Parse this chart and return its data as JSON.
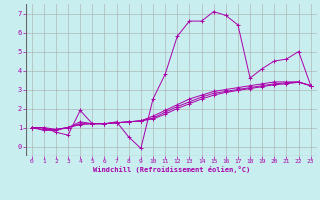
{
  "xlabel": "Windchill (Refroidissement éolien,°C)",
  "ylabel": "",
  "bg_color": "#c8eef0",
  "grid_color": "#aaaaaa",
  "line_color": "#aa00aa",
  "xlim": [
    -0.5,
    23.5
  ],
  "ylim": [
    -0.5,
    7.5
  ],
  "xticks": [
    0,
    1,
    2,
    3,
    4,
    5,
    6,
    7,
    8,
    9,
    10,
    11,
    12,
    13,
    14,
    15,
    16,
    17,
    18,
    19,
    20,
    21,
    22,
    23
  ],
  "yticks": [
    0,
    1,
    2,
    3,
    4,
    5,
    6,
    7
  ],
  "lines": [
    [
      0,
      1,
      1,
      1,
      2,
      0.75,
      3,
      0.6,
      4,
      1.9,
      5,
      1.2,
      6,
      1.2,
      7,
      1.3,
      8,
      0.5,
      9,
      -0.1,
      10,
      2.5,
      11,
      3.8,
      12,
      5.8,
      13,
      6.6,
      14,
      6.6,
      15,
      7.1,
      16,
      6.9,
      17,
      6.4,
      18,
      3.6,
      19,
      4.1,
      20,
      4.5,
      21,
      4.6,
      22,
      5.0,
      23,
      3.2
    ],
    [
      0,
      1,
      1,
      1,
      2,
      0.9,
      3,
      1.0,
      4,
      1.3,
      5,
      1.2,
      6,
      1.2,
      7,
      1.25,
      8,
      1.3,
      9,
      1.35,
      10,
      1.6,
      11,
      1.9,
      12,
      2.2,
      13,
      2.5,
      14,
      2.7,
      15,
      2.9,
      16,
      3.0,
      17,
      3.1,
      18,
      3.2,
      19,
      3.3,
      20,
      3.4,
      21,
      3.4,
      22,
      3.4,
      23,
      3.2
    ],
    [
      0,
      1,
      1,
      0.9,
      2,
      0.9,
      3,
      1.0,
      4,
      1.2,
      5,
      1.2,
      6,
      1.2,
      7,
      1.25,
      8,
      1.3,
      9,
      1.35,
      10,
      1.5,
      11,
      1.8,
      12,
      2.1,
      13,
      2.35,
      14,
      2.6,
      15,
      2.8,
      16,
      2.9,
      17,
      3.0,
      18,
      3.1,
      19,
      3.2,
      20,
      3.3,
      21,
      3.35,
      22,
      3.4,
      23,
      3.2
    ],
    [
      0,
      1,
      1,
      0.85,
      2,
      0.85,
      3,
      1.0,
      4,
      1.15,
      5,
      1.2,
      6,
      1.2,
      7,
      1.25,
      8,
      1.3,
      9,
      1.35,
      10,
      1.45,
      11,
      1.7,
      12,
      2.0,
      13,
      2.25,
      14,
      2.5,
      15,
      2.7,
      16,
      2.85,
      17,
      2.95,
      18,
      3.05,
      19,
      3.15,
      20,
      3.25,
      21,
      3.3,
      22,
      3.38,
      23,
      3.2
    ]
  ]
}
